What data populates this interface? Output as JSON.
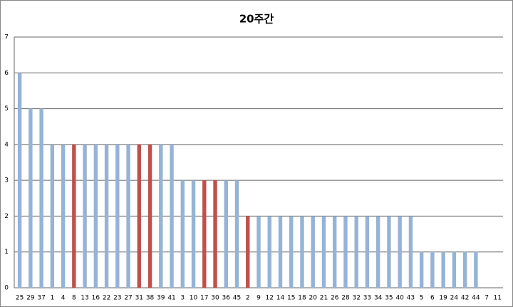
{
  "chart_data": {
    "type": "bar",
    "title": "20주간",
    "categories": [
      "25",
      "29",
      "37",
      "1",
      "4",
      "8",
      "13",
      "16",
      "22",
      "23",
      "27",
      "31",
      "38",
      "39",
      "41",
      "3",
      "10",
      "17",
      "30",
      "36",
      "45",
      "2",
      "9",
      "12",
      "14",
      "15",
      "18",
      "20",
      "21",
      "26",
      "28",
      "32",
      "33",
      "34",
      "35",
      "40",
      "43",
      "5",
      "6",
      "19",
      "24",
      "42",
      "44",
      "7",
      "11"
    ],
    "values": [
      6,
      5,
      5,
      4,
      4,
      4,
      4,
      4,
      4,
      4,
      4,
      4,
      4,
      4,
      4,
      3,
      3,
      3,
      3,
      3,
      3,
      2,
      2,
      2,
      2,
      2,
      2,
      2,
      2,
      2,
      2,
      2,
      2,
      2,
      2,
      2,
      2,
      1,
      1,
      1,
      1,
      1,
      1,
      0,
      0
    ],
    "colors": [
      "#95b3d7",
      "#95b3d7",
      "#95b3d7",
      "#95b3d7",
      "#95b3d7",
      "#c0504d",
      "#95b3d7",
      "#95b3d7",
      "#95b3d7",
      "#95b3d7",
      "#95b3d7",
      "#c0504d",
      "#c0504d",
      "#95b3d7",
      "#95b3d7",
      "#95b3d7",
      "#95b3d7",
      "#c0504d",
      "#c0504d",
      "#95b3d7",
      "#95b3d7",
      "#c0504d",
      "#95b3d7",
      "#95b3d7",
      "#95b3d7",
      "#95b3d7",
      "#95b3d7",
      "#95b3d7",
      "#95b3d7",
      "#95b3d7",
      "#95b3d7",
      "#95b3d7",
      "#95b3d7",
      "#95b3d7",
      "#95b3d7",
      "#95b3d7",
      "#95b3d7",
      "#95b3d7",
      "#95b3d7",
      "#95b3d7",
      "#95b3d7",
      "#95b3d7",
      "#95b3d7",
      "#95b3d7",
      "#95b3d7"
    ],
    "ylim": [
      0,
      7
    ],
    "yticks": [
      0,
      1,
      2,
      3,
      4,
      5,
      6,
      7
    ],
    "grid": true
  }
}
